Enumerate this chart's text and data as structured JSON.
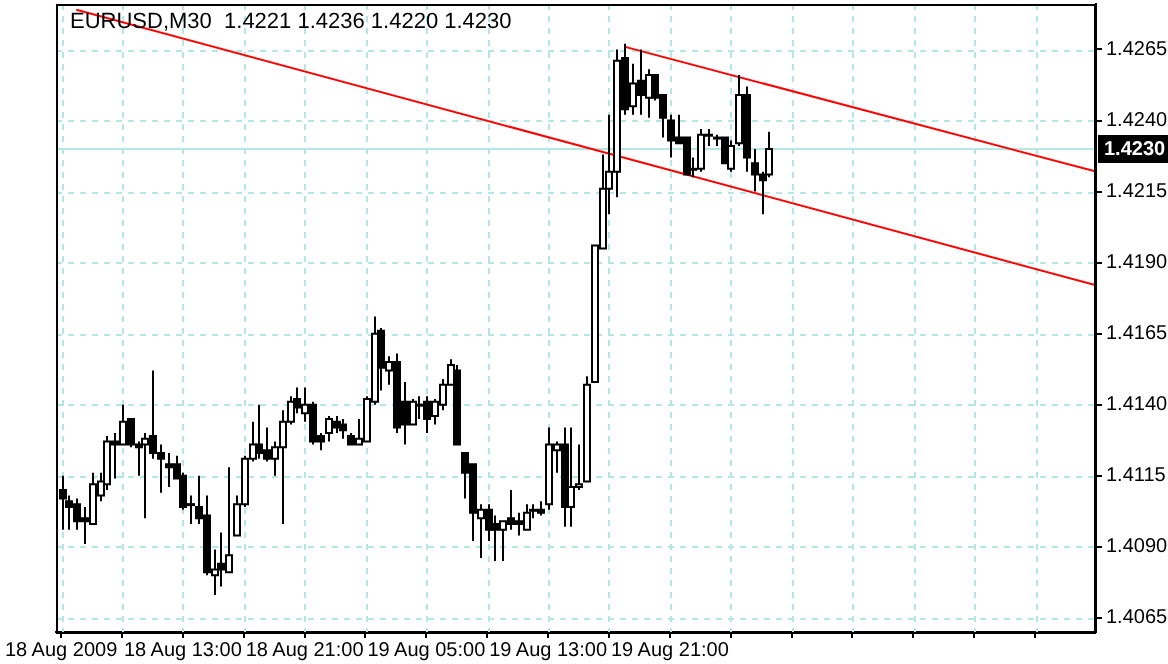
{
  "chart_data": {
    "type": "candlestick",
    "title": "EURUSD,M30  1.4221 1.4236 1.4220 1.4230",
    "x": [
      "2009-08-18T05:00",
      "2009-08-18T05:30",
      "2009-08-18T06:00",
      "2009-08-18T06:30",
      "2009-08-18T07:00",
      "2009-08-18T07:30",
      "2009-08-18T08:00",
      "2009-08-18T08:30",
      "2009-08-18T09:00",
      "2009-08-18T09:30",
      "2009-08-18T10:00",
      "2009-08-18T10:30",
      "2009-08-18T11:00",
      "2009-08-18T11:30",
      "2009-08-18T12:00",
      "2009-08-18T12:30",
      "2009-08-18T13:00",
      "2009-08-18T13:30",
      "2009-08-18T14:00",
      "2009-08-18T14:30",
      "2009-08-18T15:00",
      "2009-08-18T15:30",
      "2009-08-18T16:00",
      "2009-08-18T16:30",
      "2009-08-18T17:00",
      "2009-08-18T17:30",
      "2009-08-18T18:00",
      "2009-08-18T18:30",
      "2009-08-18T19:00",
      "2009-08-18T19:30",
      "2009-08-18T20:00",
      "2009-08-18T20:30",
      "2009-08-18T21:00",
      "2009-08-18T21:30",
      "2009-08-18T22:00",
      "2009-08-18T22:30",
      "2009-08-18T23:00",
      "2009-08-18T23:30",
      "2009-08-19T00:00",
      "2009-08-19T00:30",
      "2009-08-19T01:00",
      "2009-08-19T01:30",
      "2009-08-19T02:00",
      "2009-08-19T02:30",
      "2009-08-19T03:00",
      "2009-08-19T03:30",
      "2009-08-19T04:00",
      "2009-08-19T04:30",
      "2009-08-19T05:00",
      "2009-08-19T05:30",
      "2009-08-19T06:00",
      "2009-08-19T06:30",
      "2009-08-19T07:00",
      "2009-08-19T07:30",
      "2009-08-19T08:00",
      "2009-08-19T08:30",
      "2009-08-19T09:00",
      "2009-08-19T09:30",
      "2009-08-19T10:00",
      "2009-08-19T10:30",
      "2009-08-19T11:00",
      "2009-08-19T11:30",
      "2009-08-19T12:00",
      "2009-08-19T12:30",
      "2009-08-19T13:00",
      "2009-08-19T13:30",
      "2009-08-19T14:00",
      "2009-08-19T14:30",
      "2009-08-19T15:00",
      "2009-08-19T15:30",
      "2009-08-19T16:00",
      "2009-08-19T16:30",
      "2009-08-19T17:00",
      "2009-08-19T17:30",
      "2009-08-19T18:00",
      "2009-08-19T18:30",
      "2009-08-19T19:00",
      "2009-08-19T19:30",
      "2009-08-19T20:00",
      "2009-08-19T20:30",
      "2009-08-19T21:00",
      "2009-08-19T21:30",
      "2009-08-19T22:00",
      "2009-08-19T22:30",
      "2009-08-19T23:00",
      "2009-08-19T23:30",
      "2009-08-20T00:00",
      "2009-08-20T00:30",
      "2009-08-20T01:00",
      "2009-08-20T01:30",
      "2009-08-20T02:00",
      "2009-08-20T02:30",
      "2009-08-20T03:00",
      "2009-08-20T03:30"
    ],
    "ohlc": [
      [
        1.411,
        1.4115,
        1.4096,
        1.4107
      ],
      [
        1.4106,
        1.4108,
        1.4096,
        1.4104
      ],
      [
        1.4105,
        1.4107,
        1.4096,
        1.4099
      ],
      [
        1.41,
        1.4104,
        1.4091,
        1.4099
      ],
      [
        1.4098,
        1.4116,
        1.4098,
        1.4112
      ],
      [
        1.4108,
        1.4116,
        1.4106,
        1.4113
      ],
      [
        1.4112,
        1.4129,
        1.411,
        1.4127
      ],
      [
        1.4127,
        1.413,
        1.4114,
        1.4126
      ],
      [
        1.4126,
        1.414,
        1.4126,
        1.4134
      ],
      [
        1.4135,
        1.4135,
        1.4125,
        1.4126
      ],
      [
        1.4126,
        1.4127,
        1.4115,
        1.4125
      ],
      [
        1.4126,
        1.413,
        1.41,
        1.4128
      ],
      [
        1.4129,
        1.4152,
        1.4121,
        1.4123
      ],
      [
        1.4123,
        1.4126,
        1.4109,
        1.4121
      ],
      [
        1.4119,
        1.4123,
        1.4111,
        1.4118
      ],
      [
        1.4119,
        1.4122,
        1.4114,
        1.4114
      ],
      [
        1.4115,
        1.4116,
        1.4103,
        1.4104
      ],
      [
        1.4105,
        1.4108,
        1.4098,
        1.4105
      ],
      [
        1.4104,
        1.4115,
        1.4098,
        1.41
      ],
      [
        1.4101,
        1.4108,
        1.408,
        1.4081
      ],
      [
        1.408,
        1.4089,
        1.4073,
        1.4082
      ],
      [
        1.4084,
        1.4095,
        1.4076,
        1.4082
      ],
      [
        1.4081,
        1.4118,
        1.4081,
        1.4087
      ],
      [
        1.4094,
        1.4108,
        1.4094,
        1.4105
      ],
      [
        1.4105,
        1.4122,
        1.4104,
        1.4121
      ],
      [
        1.4121,
        1.4134,
        1.412,
        1.4126
      ],
      [
        1.4126,
        1.414,
        1.4121,
        1.4123
      ],
      [
        1.4124,
        1.4132,
        1.412,
        1.4121
      ],
      [
        1.4121,
        1.4127,
        1.4115,
        1.4125
      ],
      [
        1.4125,
        1.4138,
        1.4098,
        1.4134
      ],
      [
        1.4134,
        1.4143,
        1.4133,
        1.4141
      ],
      [
        1.4142,
        1.4146,
        1.4137,
        1.4139
      ],
      [
        1.4137,
        1.4146,
        1.4134,
        1.414
      ],
      [
        1.414,
        1.4141,
        1.4126,
        1.4127
      ],
      [
        1.4129,
        1.413,
        1.4124,
        1.4127
      ],
      [
        1.413,
        1.4136,
        1.4127,
        1.4135
      ],
      [
        1.4134,
        1.4136,
        1.413,
        1.4132
      ],
      [
        1.4133,
        1.4135,
        1.4128,
        1.4131
      ],
      [
        1.4129,
        1.413,
        1.4126,
        1.4126
      ],
      [
        1.4126,
        1.4135,
        1.4126,
        1.4128
      ],
      [
        1.4127,
        1.4143,
        1.4127,
        1.4142
      ],
      [
        1.4141,
        1.4171,
        1.414,
        1.4165
      ],
      [
        1.4166,
        1.4167,
        1.4145,
        1.4153
      ],
      [
        1.4152,
        1.4157,
        1.4147,
        1.4155
      ],
      [
        1.4155,
        1.4158,
        1.413,
        1.4132
      ],
      [
        1.4141,
        1.4148,
        1.4126,
        1.4133
      ],
      [
        1.4133,
        1.4142,
        1.4133,
        1.4141
      ],
      [
        1.414,
        1.4143,
        1.4135,
        1.414
      ],
      [
        1.4141,
        1.4143,
        1.413,
        1.4135
      ],
      [
        1.4136,
        1.4142,
        1.4133,
        1.4141
      ],
      [
        1.414,
        1.4149,
        1.4138,
        1.4147
      ],
      [
        1.4147,
        1.4156,
        1.4147,
        1.4154
      ],
      [
        1.4152,
        1.4154,
        1.4126,
        1.4126
      ],
      [
        1.4123,
        1.4123,
        1.4107,
        1.4116
      ],
      [
        1.4119,
        1.4119,
        1.4092,
        1.4102
      ],
      [
        1.41,
        1.4105,
        1.4086,
        1.4103
      ],
      [
        1.4103,
        1.4105,
        1.4092,
        1.4096
      ],
      [
        1.4098,
        1.4101,
        1.4085,
        1.4096
      ],
      [
        1.4096,
        1.4099,
        1.4085,
        1.4099
      ],
      [
        1.41,
        1.411,
        1.4096,
        1.4098
      ],
      [
        1.4099,
        1.4102,
        1.4094,
        1.4098
      ],
      [
        1.4096,
        1.4105,
        1.4096,
        1.4102
      ],
      [
        1.4103,
        1.4105,
        1.41,
        1.4103
      ],
      [
        1.4103,
        1.4106,
        1.4101,
        1.4102
      ],
      [
        1.4105,
        1.4132,
        1.4103,
        1.4126
      ],
      [
        1.4124,
        1.4127,
        1.4116,
        1.4126
      ],
      [
        1.4126,
        1.4132,
        1.4097,
        1.4104
      ],
      [
        1.4104,
        1.4132,
        1.4097,
        1.4111
      ],
      [
        1.4111,
        1.4126,
        1.411,
        1.4112
      ],
      [
        1.4113,
        1.415,
        1.4113,
        1.4147
      ],
      [
        1.4148,
        1.4196,
        1.4148,
        1.4196
      ],
      [
        1.4195,
        1.4228,
        1.4195,
        1.4216
      ],
      [
        1.4216,
        1.4242,
        1.4207,
        1.4222
      ],
      [
        1.4222,
        1.4265,
        1.4213,
        1.4261
      ],
      [
        1.4262,
        1.4267,
        1.4242,
        1.4244
      ],
      [
        1.4245,
        1.426,
        1.4242,
        1.4253
      ],
      [
        1.4254,
        1.4265,
        1.4242,
        1.4249
      ],
      [
        1.4248,
        1.4258,
        1.4241,
        1.4256
      ],
      [
        1.4256,
        1.4256,
        1.4247,
        1.4248
      ],
      [
        1.4249,
        1.4249,
        1.4234,
        1.4241
      ],
      [
        1.424,
        1.4242,
        1.4227,
        1.4233
      ],
      [
        1.4234,
        1.4242,
        1.4232,
        1.4232
      ],
      [
        1.4234,
        1.4234,
        1.4221,
        1.4221
      ],
      [
        1.4223,
        1.4227,
        1.422,
        1.4223
      ],
      [
        1.4223,
        1.4237,
        1.4222,
        1.4235
      ],
      [
        1.4235,
        1.4237,
        1.4231,
        1.4235
      ],
      [
        1.4234,
        1.4235,
        1.4231,
        1.4234
      ],
      [
        1.4234,
        1.4234,
        1.4225,
        1.4225
      ],
      [
        1.4223,
        1.4233,
        1.4222,
        1.4231
      ],
      [
        1.4232,
        1.4256,
        1.4231,
        1.4249
      ],
      [
        1.4249,
        1.4252,
        1.4222,
        1.4227
      ],
      [
        1.4225,
        1.423,
        1.4215,
        1.4221
      ],
      [
        1.4221,
        1.4222,
        1.4207,
        1.4219
      ],
      [
        1.4221,
        1.4236,
        1.422,
        1.423
      ]
    ],
    "series": [
      {
        "type": "line",
        "color": "#ff0000",
        "x": [
          "2009-08-18T06:00",
          "2009-08-21T01:00"
        ],
        "values": [
          1.4279,
          1.4182
        ]
      },
      {
        "type": "line",
        "color": "#ff0000",
        "x": [
          "2009-08-19T18:00",
          "2009-08-21T01:00"
        ],
        "values": [
          1.4266,
          1.4222
        ]
      }
    ],
    "xlim": [
      "2009-08-18T04:40",
      "2009-08-21T01:00"
    ],
    "xticks": [
      {
        "value": "2009-08-18T05:00",
        "label": "18 Aug 2009"
      },
      {
        "value": "2009-08-18T09:00",
        "label": null
      },
      {
        "value": "2009-08-18T13:00",
        "label": "18 Aug 13:00"
      },
      {
        "value": "2009-08-18T17:00",
        "label": null
      },
      {
        "value": "2009-08-18T21:00",
        "label": "18 Aug 21:00"
      },
      {
        "value": "2009-08-19T01:00",
        "label": null
      },
      {
        "value": "2009-08-19T05:00",
        "label": "19 Aug 05:00"
      },
      {
        "value": "2009-08-19T09:00",
        "label": null
      },
      {
        "value": "2009-08-19T13:00",
        "label": "19 Aug 13:00"
      },
      {
        "value": "2009-08-19T17:00",
        "label": null
      },
      {
        "value": "2009-08-19T21:00",
        "label": "19 Aug 21:00"
      },
      {
        "value": "2009-08-20T01:00",
        "label": null
      },
      {
        "value": "2009-08-20T05:00",
        "label": null
      },
      {
        "value": "2009-08-20T09:00",
        "label": null
      },
      {
        "value": "2009-08-20T13:00",
        "label": null
      },
      {
        "value": "2009-08-20T17:00",
        "label": null
      },
      {
        "value": "2009-08-20T21:00",
        "label": null
      }
    ],
    "ylim": [
      1.406,
      1.4281
    ],
    "yticks": [
      1.4065,
      {
        "value": 1.409,
        "label": "1.4090"
      },
      1.4115,
      {
        "value": 1.414,
        "label": "1.4140"
      },
      1.4165,
      {
        "value": 1.419,
        "label": "1.4190"
      },
      1.4215,
      {
        "value": 1.424,
        "label": "1.4240"
      },
      1.4265
    ],
    "ref_lines": [
      {
        "axis": "y",
        "value": 1.423,
        "label": "1.4230",
        "color": "#b4e6e6"
      }
    ],
    "grid": true,
    "legend": false,
    "marker": "none"
  }
}
